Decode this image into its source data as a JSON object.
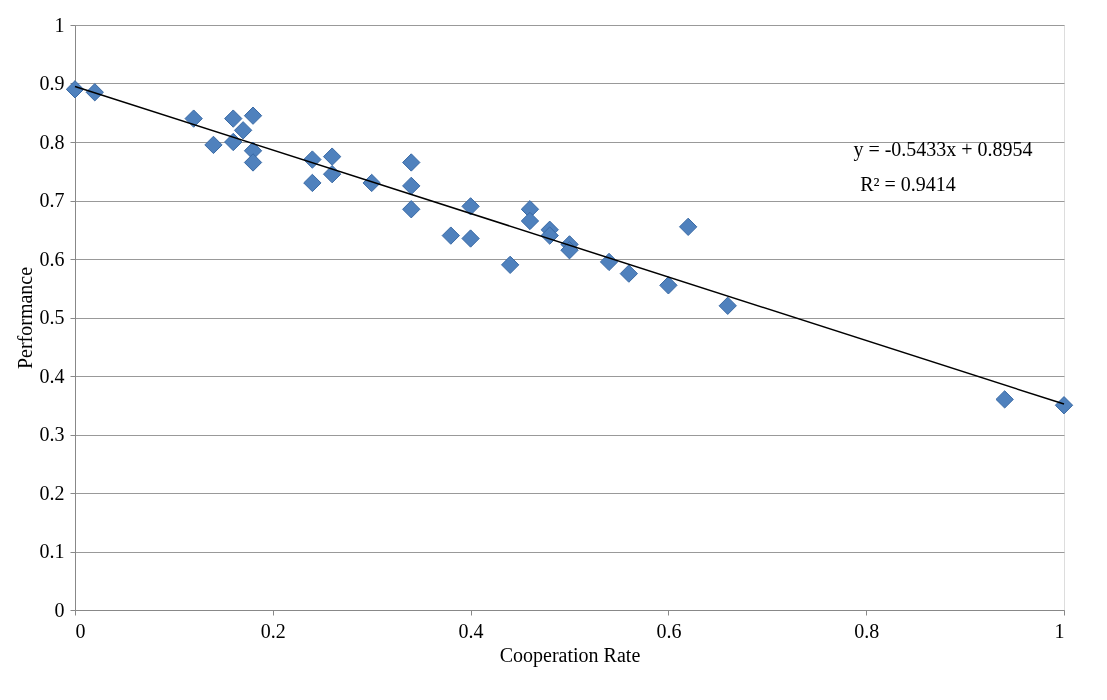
{
  "chart_data": {
    "type": "scatter",
    "xlabel": "Cooperation Rate",
    "ylabel": "Performance",
    "xlim": [
      0,
      1
    ],
    "xticks": [
      0,
      0.2,
      0.4,
      0.6,
      0.8,
      1
    ],
    "ylim": [
      0,
      1
    ],
    "yticks": [
      0,
      0.1,
      0.2,
      0.3,
      0.4,
      0.5,
      0.6,
      0.7,
      0.8,
      0.9,
      1
    ],
    "grid": "y",
    "marker": "diamond",
    "series": [
      {
        "type": "scatter",
        "color": "#4f81bd",
        "x": [
          0,
          0.02,
          0.12,
          0.14,
          0.16,
          0.16,
          0.17,
          0.18,
          0.18,
          0.18,
          0.24,
          0.24,
          0.26,
          0.26,
          0.3,
          0.34,
          0.34,
          0.34,
          0.38,
          0.4,
          0.4,
          0.44,
          0.46,
          0.46,
          0.48,
          0.48,
          0.5,
          0.5,
          0.54,
          0.56,
          0.6,
          0.62,
          0.66,
          0.94,
          1.0
        ],
        "values": [
          0.89,
          0.885,
          0.84,
          0.795,
          0.84,
          0.8,
          0.82,
          0.845,
          0.785,
          0.765,
          0.77,
          0.73,
          0.775,
          0.745,
          0.73,
          0.765,
          0.725,
          0.685,
          0.64,
          0.69,
          0.635,
          0.59,
          0.685,
          0.665,
          0.65,
          0.64,
          0.625,
          0.615,
          0.595,
          0.575,
          0.555,
          0.655,
          0.52,
          0.36,
          0.35
        ]
      },
      {
        "type": "line",
        "color": "#000000",
        "marker": "none",
        "x": [
          0,
          1
        ],
        "values": [
          0.895,
          0.352
        ]
      }
    ],
    "annotations": [
      "y = -0.5433x + 0.8954",
      "R² = 0.9414"
    ]
  }
}
